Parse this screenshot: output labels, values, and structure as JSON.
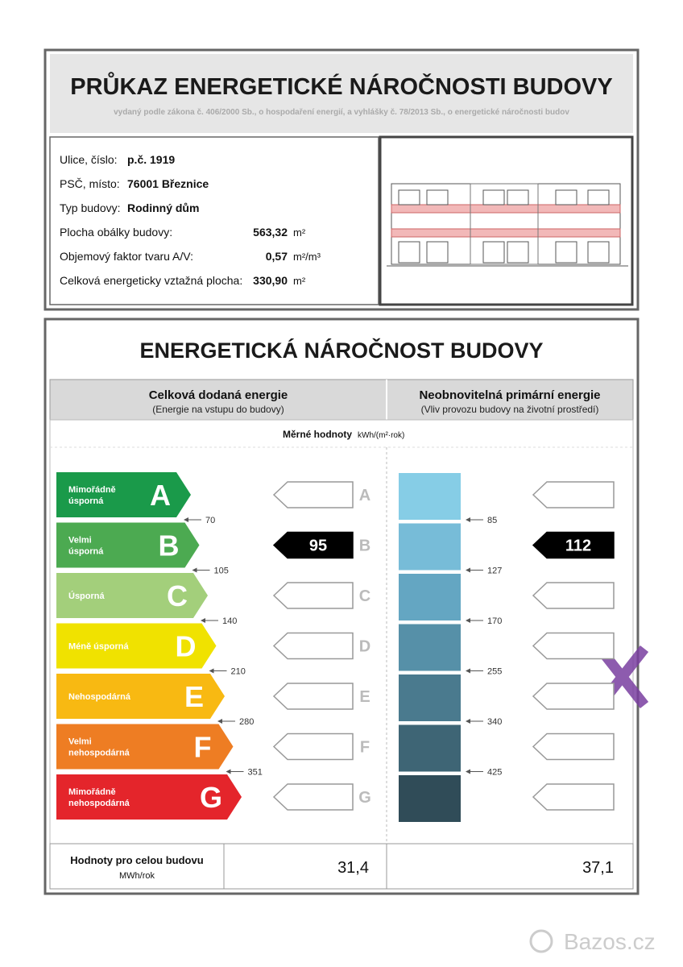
{
  "header": {
    "title": "PRŮKAZ ENERGETICKÉ NÁROČNOSTI BUDOVY",
    "subtitle": "vydaný podle zákona č. 406/2000 Sb., o hospodaření energií, a vyhlášky č. 78/2013 Sb., o energetické náročnosti budov"
  },
  "building": {
    "rows": [
      {
        "label": "Ulice, číslo:",
        "value": "p.č. 1919"
      },
      {
        "label": "PSČ, místo:",
        "value": "76001 Březnice"
      },
      {
        "label": "Typ budovy:",
        "value": "Rodinný dům"
      },
      {
        "label": "Plocha obálky budovy:",
        "value": "563,32",
        "unit": "m²"
      },
      {
        "label": "Objemový faktor tvaru A/V:",
        "value": "0,57",
        "unit": "m²/m³"
      },
      {
        "label": "Celková energeticky vztažná plocha:",
        "value": "330,90",
        "unit": "m²"
      }
    ]
  },
  "rating": {
    "title": "ENERGETICKÁ NÁROČNOST BUDOVY",
    "columns": [
      {
        "title": "Celková dodaná energie",
        "subtitle": "(Energie na vstupu do budovy)"
      },
      {
        "title": "Neobnovitelná primární energie",
        "subtitle": "(Vliv provozu budovy na životní prostředí)"
      }
    ],
    "specific_label": "Měrné hodnoty",
    "specific_unit": "kWh/(m²·rok)",
    "classes": [
      {
        "letter": "A",
        "label": [
          "Mimořádně",
          "úsporná"
        ],
        "color": "#1a9a4a"
      },
      {
        "letter": "B",
        "label": [
          "Velmi",
          "úsporná"
        ],
        "color": "#4caa51"
      },
      {
        "letter": "C",
        "label": [
          "Úsporná"
        ],
        "color": "#a3cf7b"
      },
      {
        "letter": "D",
        "label": [
          "Méně úsporná"
        ],
        "color": "#f0e200"
      },
      {
        "letter": "E",
        "label": [
          "Nehospodárná"
        ],
        "color": "#f8b912"
      },
      {
        "letter": "F",
        "label": [
          "Velmi",
          "nehospodárná"
        ],
        "color": "#ee7d23"
      },
      {
        "letter": "G",
        "label": [
          "Mimořádně",
          "nehospodárná"
        ],
        "color": "#e4252b"
      }
    ],
    "delivered_thresholds": [
      70,
      105,
      140,
      210,
      280,
      351
    ],
    "primary_thresholds": [
      85,
      127,
      170,
      255,
      340,
      425
    ],
    "delivered_value": 95,
    "primary_value": 112
  },
  "totals": {
    "label": "Hodnoty pro celou budovu",
    "unit": "MWh/rok",
    "delivered": "31,4",
    "primary": "37,1"
  },
  "watermark": "Bazos.cz"
}
